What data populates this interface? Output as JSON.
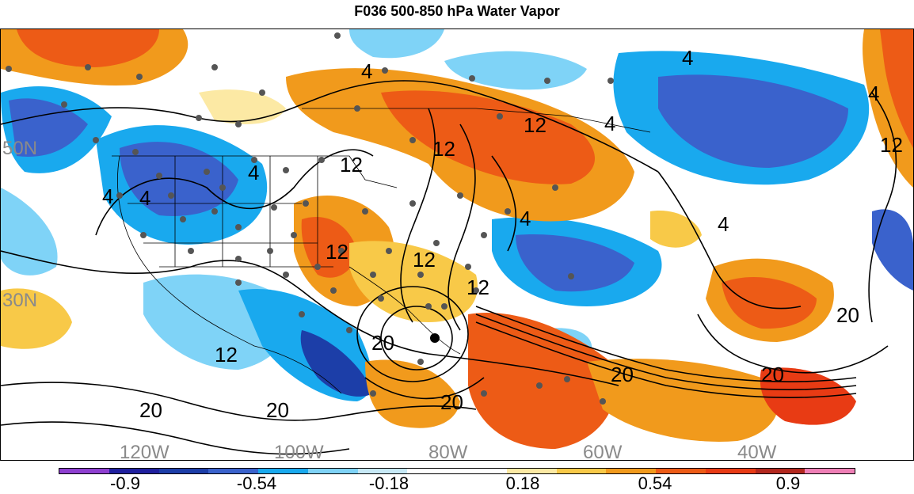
{
  "title": "F036 500-850 hPa Water Vapor",
  "colorbar": {
    "colors": [
      "#8e3fd0",
      "#1f1f9e",
      "#1c3ea8",
      "#3a62cc",
      "#19a9ee",
      "#7fd3f7",
      "#c7e9f6",
      "#ffffff",
      "#ffffff",
      "#fce9a4",
      "#f8c948",
      "#f19a1c",
      "#ed5b16",
      "#e83b14",
      "#b2271e",
      "#ef7fb6"
    ],
    "tick_labels": [
      "-0.9",
      "-0.54",
      "-0.18",
      "0.18",
      "0.54",
      "0.9"
    ]
  },
  "map": {
    "lat_labels": [
      "50N",
      "30N"
    ],
    "lon_labels": [
      "120W",
      "100W",
      "80W",
      "60W",
      "40W"
    ],
    "contour_labels": [
      "4",
      "4",
      "4",
      "4",
      "4",
      "4",
      "4",
      "4",
      "4",
      "12",
      "12",
      "12",
      "12",
      "12",
      "12",
      "12",
      "12",
      "20",
      "20",
      "20",
      "20",
      "20",
      "20",
      "20"
    ]
  }
}
